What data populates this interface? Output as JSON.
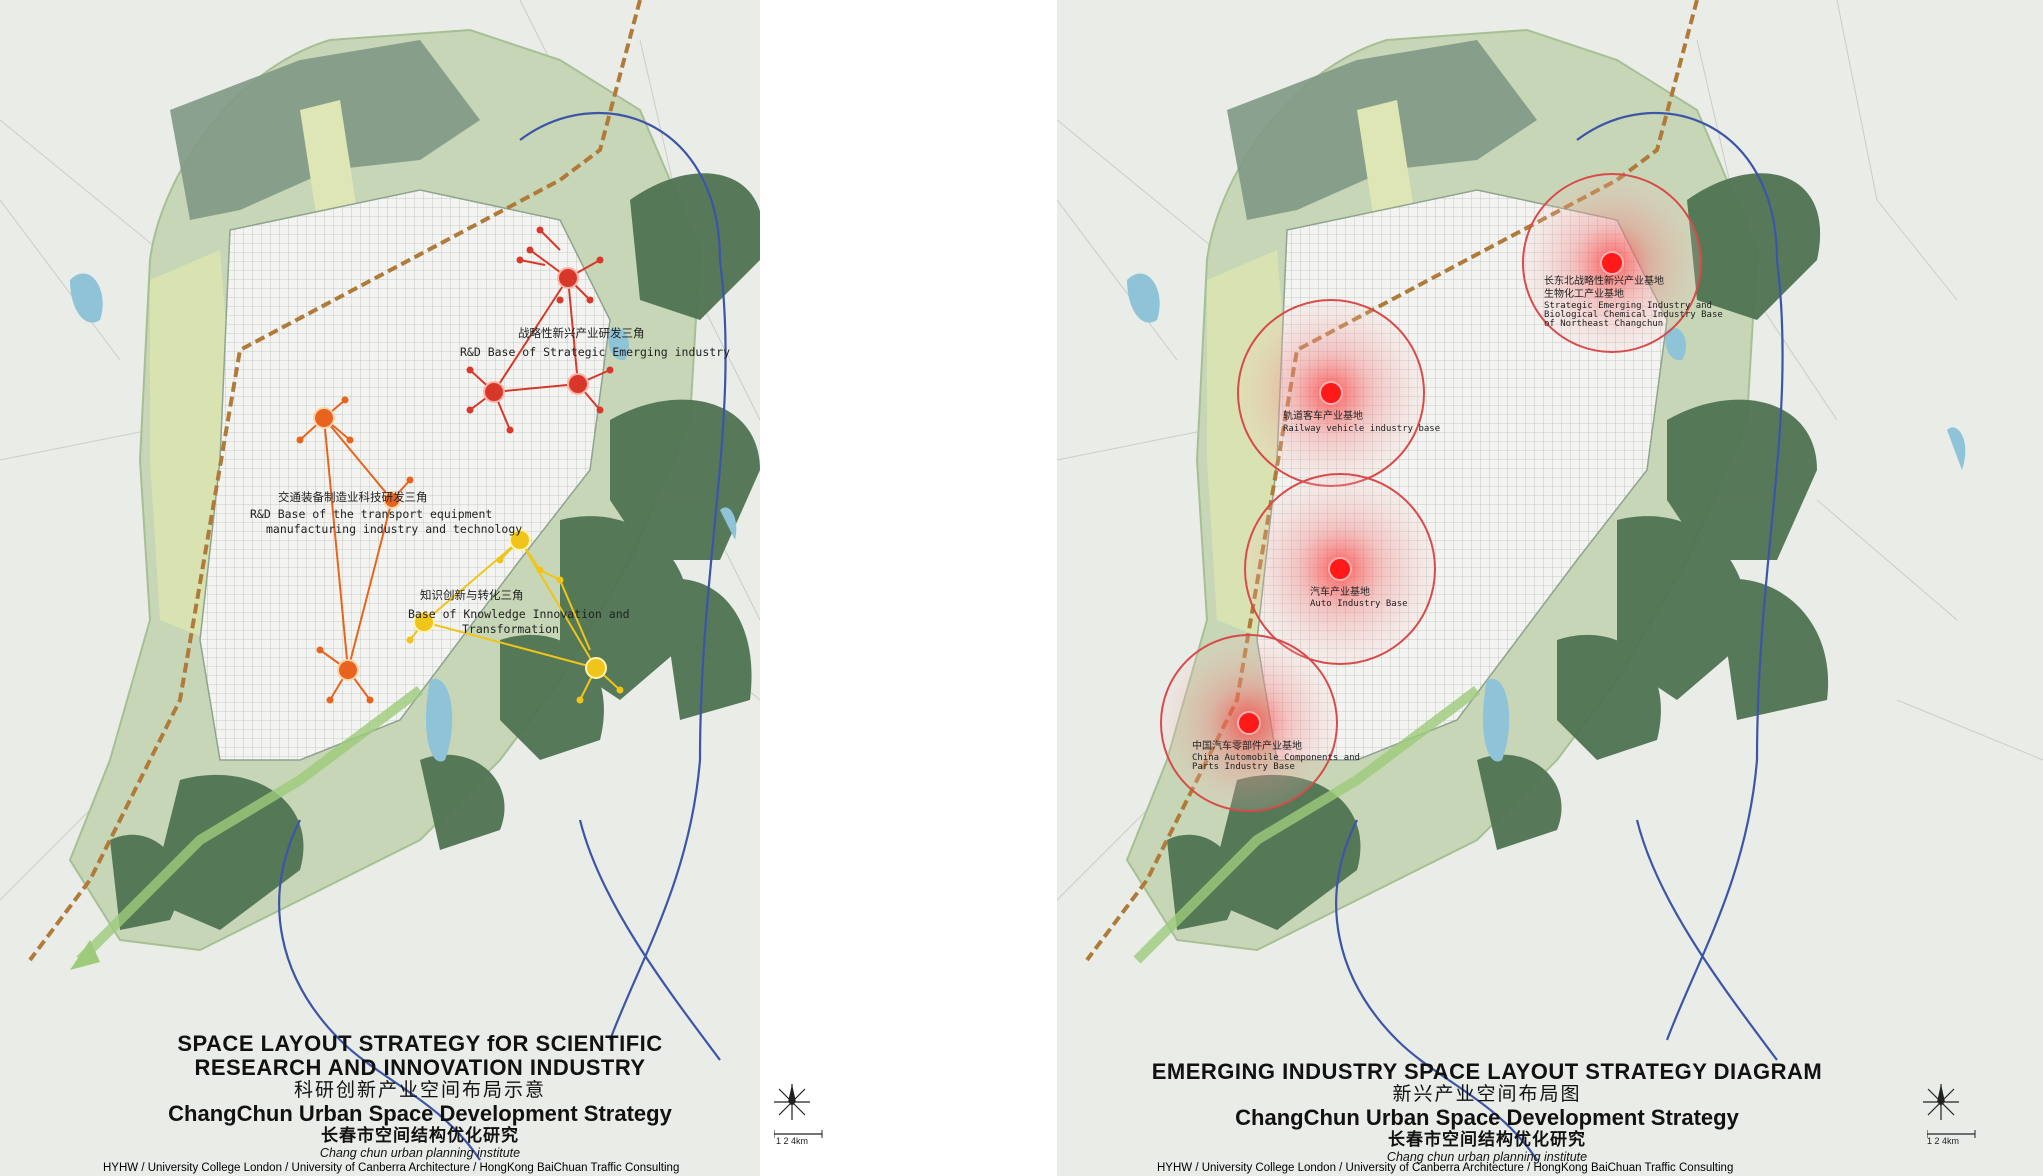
{
  "left_panel": {
    "title_en_line1": "SPACE LAYOUT STRATEGY fOR SCIENTIFIC",
    "title_en_line2": "RESEARCH AND INNOVATION INDUSTRY",
    "title_zh": "科研创新产业空间布局示意",
    "subtitle_en": "ChangChun Urban Space Development Strategy",
    "subtitle_zh": "长春市空间结构优化研究",
    "institute": "Chang chun urban planning institute",
    "credits": "HYHW / University College London  / University of Canberra Architecture / HongKong BaiChuan Traffic Consulting",
    "scale_text": "1  2  4km",
    "labels": {
      "strategic_zh": "战略性新兴产业研发三角",
      "strategic_en": "R&D Base of Strategic Emerging industry",
      "transport_zh": "交通装备制造业科技研发三角",
      "transport_en1": "R&D Base of  the transport equipment",
      "transport_en2": "manufacturing industry and technology",
      "knowledge_zh": "知识创新与转化三角",
      "knowledge_en1": "Base of Knowledge Innovation and",
      "knowledge_en2": "Transformation"
    },
    "colors": {
      "red": "#d8382a",
      "orange": "#e8641e",
      "yellow": "#f0c419"
    }
  },
  "right_panel": {
    "title_en": "EMERGING INDUSTRY SPACE LAYOUT STRATEGY DIAGRAM",
    "title_zh": "新兴产业空间布局图",
    "subtitle_en": "ChangChun Urban Space Development Strategy",
    "subtitle_zh": "长春市空间结构优化研究",
    "institute": "Chang chun urban planning institute",
    "credits": "HYHW / University College London  / University of Canberra Architecture / HongKong BaiChuan Traffic Consulting",
    "scale_text": "1  2  4km",
    "bases": [
      {
        "zh": "长东北战略性新兴产业基地",
        "en1": "Strategic Emerging Industry and",
        "en2": "Biological Chemical Industry  Base",
        "en3": "of Northeast Changchun",
        "zh2": "生物化工产业基地"
      },
      {
        "zh": "轨道客车产业基地",
        "en1": "Railway vehicle  industry base"
      },
      {
        "zh": "汽车产业基地",
        "en1": "Auto Industry Base"
      },
      {
        "zh": "中国汽车零部件产业基地",
        "en1": "China Automobile Components and",
        "en2": "Parts Industry Base"
      }
    ],
    "colors": {
      "hotspot": "#ff1a1a",
      "ring": "#d94a4a"
    }
  }
}
